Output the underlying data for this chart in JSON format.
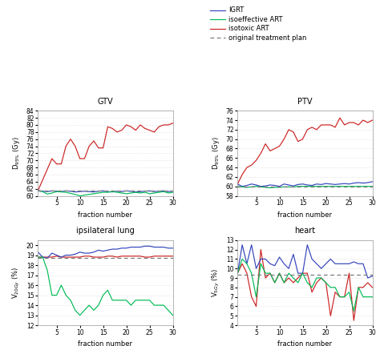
{
  "fractions": [
    1,
    2,
    3,
    4,
    5,
    6,
    7,
    8,
    9,
    10,
    11,
    12,
    13,
    14,
    15,
    16,
    17,
    18,
    19,
    20,
    21,
    22,
    23,
    24,
    25,
    26,
    27,
    28,
    29,
    30
  ],
  "gtv_igrt": [
    61.5,
    61.3,
    61.2,
    61.4,
    61.3,
    61.2,
    61.4,
    61.3,
    61.1,
    61.2,
    61.3,
    61.2,
    61.1,
    61.3,
    61.4,
    61.2,
    61.1,
    61.3,
    61.2,
    61.4,
    61.3,
    61.1,
    61.2,
    61.3,
    61.4,
    61.2,
    61.3,
    61.4,
    61.2,
    61.3
  ],
  "gtv_iso_eff": [
    61.4,
    61.2,
    60.5,
    60.8,
    61.2,
    61.1,
    61.0,
    60.7,
    60.4,
    60.0,
    60.2,
    60.4,
    60.6,
    60.8,
    61.0,
    61.0,
    61.2,
    61.0,
    60.8,
    60.6,
    60.8,
    61.0,
    60.8,
    61.0,
    60.6,
    60.8,
    61.0,
    61.2,
    60.8,
    61.0
  ],
  "gtv_isotox": [
    61.5,
    64.5,
    67.5,
    70.5,
    69.0,
    69.0,
    74.0,
    76.0,
    74.0,
    70.5,
    70.5,
    74.0,
    75.5,
    73.5,
    73.5,
    79.5,
    79.0,
    78.0,
    78.5,
    80.0,
    79.5,
    78.5,
    80.0,
    79.0,
    78.5,
    78.0,
    79.5,
    80.0,
    80.0,
    80.5
  ],
  "gtv_original": [
    61.5,
    61.5,
    61.5,
    61.5,
    61.5,
    61.5,
    61.5,
    61.5,
    61.5,
    61.5,
    61.5,
    61.5,
    61.5,
    61.5,
    61.5,
    61.5,
    61.5,
    61.5,
    61.5,
    61.5,
    61.5,
    61.5,
    61.5,
    61.5,
    61.5,
    61.5,
    61.5,
    61.5,
    61.5,
    61.5
  ],
  "ptv_igrt": [
    60.5,
    60.0,
    60.2,
    60.5,
    60.3,
    60.0,
    60.1,
    60.3,
    60.2,
    60.0,
    60.5,
    60.3,
    60.1,
    60.4,
    60.5,
    60.3,
    60.2,
    60.5,
    60.4,
    60.6,
    60.5,
    60.4,
    60.5,
    60.6,
    60.5,
    60.7,
    60.8,
    60.7,
    60.8,
    61.0
  ],
  "ptv_iso_eff": [
    60.0,
    59.9,
    59.8,
    59.9,
    60.0,
    59.9,
    59.8,
    59.7,
    59.8,
    59.8,
    59.9,
    59.9,
    59.9,
    60.0,
    60.0,
    60.0,
    60.0,
    60.0,
    60.0,
    60.0,
    60.0,
    60.0,
    60.0,
    60.0,
    60.0,
    60.0,
    60.0,
    60.0,
    60.0,
    60.0
  ],
  "ptv_isotox": [
    60.5,
    62.5,
    64.0,
    64.5,
    65.5,
    67.0,
    69.0,
    67.5,
    68.0,
    68.5,
    70.0,
    72.0,
    71.5,
    69.5,
    70.0,
    72.0,
    72.5,
    72.0,
    73.0,
    73.0,
    73.0,
    72.5,
    74.5,
    73.0,
    73.5,
    73.5,
    73.0,
    74.0,
    73.5,
    74.0
  ],
  "ptv_original": [
    60.0,
    60.0,
    60.0,
    60.0,
    60.0,
    60.0,
    60.0,
    60.0,
    60.0,
    60.0,
    60.0,
    60.0,
    60.0,
    60.0,
    60.0,
    60.0,
    60.0,
    60.0,
    60.0,
    60.0,
    60.0,
    60.0,
    60.0,
    60.0,
    60.0,
    60.0,
    60.0,
    60.0,
    60.0,
    60.0
  ],
  "lung_igrt": [
    19.3,
    18.8,
    18.7,
    19.2,
    19.0,
    18.8,
    19.0,
    19.0,
    19.1,
    19.3,
    19.2,
    19.2,
    19.3,
    19.5,
    19.4,
    19.5,
    19.6,
    19.6,
    19.7,
    19.7,
    19.8,
    19.8,
    19.8,
    19.9,
    19.9,
    19.8,
    19.8,
    19.8,
    19.7,
    19.7
  ],
  "lung_iso_eff": [
    18.8,
    18.8,
    17.5,
    15.0,
    15.0,
    16.0,
    15.0,
    14.5,
    13.5,
    13.0,
    13.5,
    14.0,
    13.5,
    14.0,
    15.0,
    15.5,
    14.5,
    14.5,
    14.5,
    14.5,
    14.0,
    14.5,
    14.5,
    14.5,
    14.5,
    14.0,
    14.0,
    14.0,
    13.5,
    13.0
  ],
  "lung_isotox": [
    18.8,
    18.8,
    18.8,
    18.8,
    18.9,
    18.8,
    18.8,
    18.8,
    18.8,
    18.8,
    18.9,
    18.9,
    18.8,
    18.8,
    18.8,
    18.9,
    18.9,
    18.8,
    18.9,
    18.9,
    18.9,
    18.9,
    18.9,
    18.8,
    18.8,
    18.9,
    18.9,
    18.9,
    18.9,
    18.9
  ],
  "lung_original": [
    18.7,
    18.7,
    18.7,
    18.7,
    18.7,
    18.7,
    18.7,
    18.7,
    18.7,
    18.7,
    18.7,
    18.7,
    18.7,
    18.7,
    18.7,
    18.7,
    18.7,
    18.7,
    18.7,
    18.7,
    18.7,
    18.7,
    18.7,
    18.7,
    18.7,
    18.7,
    18.7,
    18.7,
    18.7,
    18.7
  ],
  "heart_igrt": [
    9.5,
    12.5,
    10.5,
    12.5,
    10.0,
    11.0,
    11.0,
    10.5,
    10.3,
    11.2,
    10.5,
    10.0,
    11.5,
    9.5,
    9.5,
    12.5,
    11.0,
    10.5,
    10.0,
    10.5,
    11.0,
    10.5,
    10.5,
    10.5,
    10.5,
    10.7,
    10.5,
    10.5,
    9.0,
    9.2
  ],
  "heart_iso_eff": [
    9.5,
    11.0,
    10.5,
    9.5,
    7.0,
    10.5,
    9.5,
    9.5,
    8.5,
    9.5,
    8.5,
    9.5,
    9.0,
    8.5,
    9.5,
    8.5,
    8.0,
    9.0,
    9.0,
    8.5,
    8.0,
    8.0,
    7.0,
    7.0,
    7.5,
    5.5,
    8.0,
    7.0,
    7.0,
    7.0
  ],
  "heart_isotox": [
    9.5,
    10.5,
    9.5,
    7.0,
    6.0,
    12.0,
    9.0,
    9.5,
    8.5,
    9.5,
    8.5,
    9.0,
    8.5,
    9.0,
    9.5,
    9.5,
    7.5,
    8.5,
    9.0,
    8.5,
    5.0,
    7.5,
    7.0,
    7.0,
    9.5,
    4.5,
    8.0,
    8.0,
    8.5,
    8.0
  ],
  "heart_original": [
    9.3,
    9.3,
    9.3,
    9.3,
    9.3,
    9.3,
    9.3,
    9.3,
    9.3,
    9.3,
    9.3,
    9.3,
    9.3,
    9.3,
    9.3,
    9.3,
    9.3,
    9.3,
    9.3,
    9.3,
    9.3,
    9.3,
    9.3,
    9.3,
    9.3,
    9.3,
    9.3,
    9.3,
    9.3,
    9.3
  ],
  "color_igrt": "#3344bb",
  "color_isoeff": "#00bb55",
  "color_isotox": "#cc2222",
  "color_original": "#777777",
  "gtv_ylim": [
    60,
    84
  ],
  "ptv_ylim": [
    58,
    76
  ],
  "lung_ylim": [
    12,
    20.5
  ],
  "heart_ylim": [
    4,
    13
  ],
  "gtv_yticks": [
    60,
    62,
    64,
    66,
    68,
    70,
    72,
    74,
    76,
    78,
    80,
    82,
    84
  ],
  "ptv_yticks": [
    58,
    60,
    62,
    64,
    66,
    68,
    70,
    72,
    74,
    76
  ],
  "lung_yticks": [
    12,
    13,
    14,
    15,
    16,
    17,
    18,
    19,
    20
  ],
  "heart_yticks": [
    4,
    5,
    6,
    7,
    8,
    9,
    10,
    11,
    12,
    13
  ],
  "xticks": [
    5,
    10,
    15,
    20,
    25,
    30
  ],
  "gtv_ylabel": "D$_{95\\%}$ (Gy)",
  "ptv_ylabel": "D$_{95\\%}$ (Gy)",
  "lung_ylabel": "V$_{20Gy}$ (%)",
  "heart_ylabel": "V$_{5Gy}$ (%)",
  "xlabel": "fraction number",
  "title_gtv": "GTV",
  "title_ptv": "PTV",
  "title_lung": "ipsilateral lung",
  "title_heart": "heart",
  "legend_labels": [
    "IGRT",
    "isoeffective ART",
    "isotoxic ART",
    "original treatment plan"
  ],
  "background_color": "#ffffff"
}
